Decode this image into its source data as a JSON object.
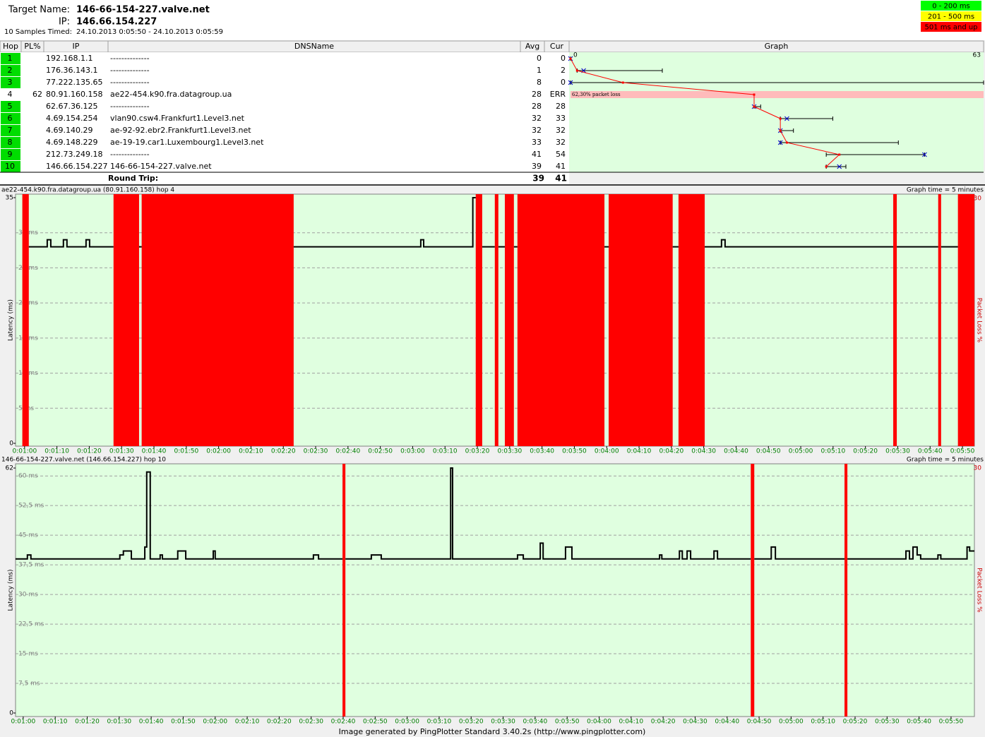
{
  "header": {
    "target_label": "Target Name:",
    "target": "146-66-154-227.valve.net",
    "ip_label": "IP:",
    "ip": "146.66.154.227",
    "samples_label": "10 Samples Timed:",
    "samples_time": "24.10.2013 0:05:50 - 24.10.2013 0:05:59"
  },
  "legend": [
    {
      "label": "0 - 200 ms",
      "color": "#00ff00"
    },
    {
      "label": "201 - 500 ms",
      "color": "#ffff00"
    },
    {
      "label": "501 ms and up",
      "color": "#ff0000"
    }
  ],
  "table": {
    "columns": [
      "Hop",
      "PL%",
      "IP",
      "DNSName",
      "Avg",
      "Cur",
      "Graph"
    ],
    "rows": [
      {
        "hop": 1,
        "pl": null,
        "ip": "192.168.1.1",
        "dns": "--------------",
        "avg": 0,
        "cur": 0
      },
      {
        "hop": 2,
        "pl": null,
        "ip": "176.36.143.1",
        "dns": "--------------",
        "avg": 1,
        "cur": 2
      },
      {
        "hop": 3,
        "pl": null,
        "ip": "77.222.135.65",
        "dns": "--------------",
        "avg": 8,
        "cur": 0
      },
      {
        "hop": 4,
        "pl": 62,
        "ip": "80.91.160.158",
        "dns": "ae22-454.k90.fra.datagroup.ua",
        "avg": 28,
        "cur": "ERR"
      },
      {
        "hop": 5,
        "pl": null,
        "ip": "62.67.36.125",
        "dns": "--------------",
        "avg": 28,
        "cur": 28
      },
      {
        "hop": 6,
        "pl": null,
        "ip": "4.69.154.254",
        "dns": "vlan90.csw4.Frankfurt1.Level3.net",
        "avg": 32,
        "cur": 33
      },
      {
        "hop": 7,
        "pl": null,
        "ip": "4.69.140.29",
        "dns": "ae-92-92.ebr2.Frankfurt1.Level3.net",
        "avg": 32,
        "cur": 32
      },
      {
        "hop": 8,
        "pl": null,
        "ip": "4.69.148.229",
        "dns": "ae-19-19.car1.Luxembourg1.Level3.net",
        "avg": 33,
        "cur": 32
      },
      {
        "hop": 9,
        "pl": null,
        "ip": "212.73.249.18",
        "dns": "--------------",
        "avg": 41,
        "cur": 54
      },
      {
        "hop": 10,
        "pl": null,
        "ip": "146.66.154.227",
        "dns": "146-66-154-227.valve.net",
        "avg": 39,
        "cur": 41
      }
    ],
    "round_trip": {
      "label": "Round Trip:",
      "avg": 39,
      "cur": 41
    }
  },
  "trace_graph": {
    "xlim": [
      0,
      63
    ],
    "xticks": [
      0,
      63
    ],
    "annotation": "62,30% packet loss",
    "line_color": "#ff0000",
    "marker_color": "#0000cc",
    "min": [
      0,
      1,
      0,
      null,
      28,
      32,
      32,
      32,
      39,
      39
    ],
    "max": [
      0,
      14,
      63,
      null,
      29,
      40,
      34,
      50,
      54,
      42
    ]
  },
  "graphs": [
    {
      "title": "ae22-454.k90.fra.datagroup.ua (80.91.160.158) hop 4",
      "graph_time": "Graph time = 5 minutes",
      "y_label": "Latency (ms)",
      "y2_label": "Packet Loss %",
      "xlim": [
        57.2,
        353.7
      ],
      "xticks": [
        {
          "value": 60,
          "label": "0:01:00"
        },
        {
          "value": 70,
          "label": "0:01:10"
        },
        {
          "value": 80,
          "label": "0:01:20"
        },
        {
          "value": 90,
          "label": "0:01:30"
        },
        {
          "value": 100,
          "label": "0:01:40"
        },
        {
          "value": 110,
          "label": "0:01:50"
        },
        {
          "value": 120,
          "label": "0:02:00"
        },
        {
          "value": 130,
          "label": "0:02:10"
        },
        {
          "value": 140,
          "label": "0:02:20"
        },
        {
          "value": 150,
          "label": "0:02:30"
        },
        {
          "value": 160,
          "label": "0:02:40"
        },
        {
          "value": 170,
          "label": "0:02:50"
        },
        {
          "value": 180,
          "label": "0:03:00"
        },
        {
          "value": 190,
          "label": "0:03:10"
        },
        {
          "value": 200,
          "label": "0:03:20"
        },
        {
          "value": 210,
          "label": "0:03:30"
        },
        {
          "value": 220,
          "label": "0:03:40"
        },
        {
          "value": 230,
          "label": "0:03:50"
        },
        {
          "value": 240,
          "label": "0:04:00"
        },
        {
          "value": 250,
          "label": "0:04:10"
        },
        {
          "value": 260,
          "label": "0:04:20"
        },
        {
          "value": 270,
          "label": "0:04:30"
        },
        {
          "value": 280,
          "label": "0:04:40"
        },
        {
          "value": 290,
          "label": "0:04:50"
        },
        {
          "value": 300,
          "label": "0:05:00"
        },
        {
          "value": 310,
          "label": "0:05:10"
        },
        {
          "value": 320,
          "label": "0:05:20"
        },
        {
          "value": 330,
          "label": "0:05:30"
        },
        {
          "value": 340,
          "label": "0:05:40"
        },
        {
          "value": 350,
          "label": "0:05:50"
        }
      ],
      "ylim": [
        0,
        35
      ],
      "yticks": [
        0,
        {
          "value": 5,
          "label": "5 ms"
        },
        {
          "value": 10,
          "label": "10 ms"
        },
        {
          "value": 15,
          "label": "15 ms"
        },
        {
          "value": 20,
          "label": "20 ms"
        },
        {
          "value": 25,
          "label": "25 ms"
        },
        {
          "value": 30,
          "label": "30 ms"
        },
        35
      ],
      "y2lim": [
        0,
        30
      ],
      "y2ticks": [
        30
      ],
      "grid": true,
      "latency": {
        "color": "#000000",
        "x": [
          61.3,
          67.0,
          67.0,
          68.1,
          68.1,
          72.0,
          72.0,
          73.1,
          73.1,
          79.0,
          79.0,
          80.1,
          80.1,
          87.5,
          null,
          95.4,
          96.2,
          null,
          143.2,
          182.5,
          182.5,
          183.4,
          183.4,
          198.6,
          198.6,
          199.5,
          null,
          201.5,
          205.4,
          null,
          206.5,
          208.5,
          null,
          211.3,
          212.4,
          null,
          239.3,
          240.6,
          null,
          260.4,
          262.2,
          null,
          270.3,
          275.5,
          275.5,
          276.6,
          276.6,
          328.6,
          null,
          329.7,
          342.5,
          null,
          343.4,
          348.6
        ],
        "values": [
          28,
          28,
          29,
          29,
          28,
          28,
          29,
          29,
          28,
          28,
          29,
          29,
          28,
          28,
          null,
          28,
          28,
          null,
          28,
          28,
          29,
          29,
          28,
          28,
          35,
          35,
          null,
          28,
          28,
          null,
          28,
          28,
          null,
          28,
          28,
          null,
          28,
          28,
          null,
          28,
          28,
          null,
          28,
          28,
          29,
          29,
          28,
          28,
          null,
          28,
          28,
          null,
          28,
          28
        ]
      },
      "loss": {
        "color": "#ff0000",
        "axis": "y2",
        "start": [
          59.3,
          87.5,
          96.2,
          199.5,
          205.4,
          208.5,
          212.4,
          240.6,
          262.2,
          328.6,
          342.5,
          348.6
        ],
        "end": [
          61.3,
          95.4,
          143.2,
          201.5,
          206.5,
          211.3,
          239.3,
          260.4,
          270.3,
          329.7,
          343.4,
          353.7
        ],
        "values": [
          30,
          30,
          30,
          30,
          30,
          30,
          30,
          30,
          30,
          30,
          30,
          30
        ]
      }
    },
    {
      "title": "146-66-154-227.valve.net (146.66.154.227) hop 10",
      "graph_time": "Graph time = 5 minutes",
      "y_label": "Latency (ms)",
      "y2_label": "Packet Loss %",
      "xlim": [
        57.6,
        357.3
      ],
      "xticks": [
        {
          "value": 60,
          "label": "0:01:00"
        },
        {
          "value": 70,
          "label": "0:01:10"
        },
        {
          "value": 80,
          "label": "0:01:20"
        },
        {
          "value": 90,
          "label": "0:01:30"
        },
        {
          "value": 100,
          "label": "0:01:40"
        },
        {
          "value": 110,
          "label": "0:01:50"
        },
        {
          "value": 120,
          "label": "0:02:00"
        },
        {
          "value": 130,
          "label": "0:02:10"
        },
        {
          "value": 140,
          "label": "0:02:20"
        },
        {
          "value": 150,
          "label": "0:02:30"
        },
        {
          "value": 160,
          "label": "0:02:40"
        },
        {
          "value": 170,
          "label": "0:02:50"
        },
        {
          "value": 180,
          "label": "0:03:00"
        },
        {
          "value": 190,
          "label": "0:03:10"
        },
        {
          "value": 200,
          "label": "0:03:20"
        },
        {
          "value": 210,
          "label": "0:03:30"
        },
        {
          "value": 220,
          "label": "0:03:40"
        },
        {
          "value": 230,
          "label": "0:03:50"
        },
        {
          "value": 240,
          "label": "0:04:00"
        },
        {
          "value": 250,
          "label": "0:04:10"
        },
        {
          "value": 260,
          "label": "0:04:20"
        },
        {
          "value": 270,
          "label": "0:04:30"
        },
        {
          "value": 280,
          "label": "0:04:40"
        },
        {
          "value": 290,
          "label": "0:04:50"
        },
        {
          "value": 300,
          "label": "0:05:00"
        },
        {
          "value": 310,
          "label": "0:05:10"
        },
        {
          "value": 320,
          "label": "0:05:20"
        },
        {
          "value": 330,
          "label": "0:05:30"
        },
        {
          "value": 340,
          "label": "0:05:40"
        },
        {
          "value": 350,
          "label": "0:05:50"
        }
      ],
      "ylim": [
        0,
        62
      ],
      "yticks": [
        0,
        {
          "value": 7.5,
          "label": "7,5 ms"
        },
        {
          "value": 15,
          "label": "15 ms"
        },
        {
          "value": 22.5,
          "label": "22,5 ms"
        },
        {
          "value": 30,
          "label": "30 ms"
        },
        {
          "value": 37.5,
          "label": "37,5 ms"
        },
        {
          "value": 45,
          "label": "45 ms"
        },
        {
          "value": 52.5,
          "label": "52,5 ms"
        },
        {
          "value": 60,
          "label": "60 ms"
        },
        62
      ],
      "y2lim": [
        0,
        30
      ],
      "y2ticks": [
        30
      ],
      "grid": true,
      "latency": {
        "color": "#000000",
        "x": [
          57.6,
          61.3,
          61.3,
          62.4,
          62.4,
          90.2,
          90.2,
          91.3,
          91.3,
          93.8,
          93.8,
          98.0,
          98.0,
          98.6,
          98.6,
          99.7,
          99.7,
          102.8,
          102.8,
          103.5,
          103.5,
          108.3,
          108.3,
          110.8,
          110.8,
          119.4,
          119.4,
          120.0,
          120.0,
          150.7,
          150.7,
          152.3,
          152.3,
          159.8,
          null,
          160.7,
          168.8,
          168.8,
          171.9,
          171.9,
          193.6,
          193.6,
          194.2,
          194.2,
          214.5,
          214.5,
          216.3,
          216.3,
          221.6,
          221.6,
          222.5,
          222.5,
          229.5,
          229.5,
          231.5,
          231.5,
          258.9,
          258.9,
          259.6,
          259.6,
          265.1,
          265.1,
          266.0,
          266.0,
          267.5,
          267.5,
          268.6,
          268.6,
          275.9,
          275.9,
          277.0,
          277.0,
          287.4,
          null,
          288.5,
          293.8,
          293.8,
          295.1,
          295.1,
          316.7,
          null,
          317.6,
          335.9,
          335.9,
          337.0,
          337.0,
          338.1,
          338.1,
          339.4,
          339.4,
          340.5,
          340.5,
          345.9,
          345.9,
          346.8,
          346.8,
          355.0,
          355.0,
          355.8,
          355.8,
          357.3
        ],
        "values": [
          39,
          39,
          40,
          40,
          39,
          39,
          40,
          40,
          41,
          41,
          39,
          39,
          42,
          42,
          61,
          61,
          39,
          39,
          40,
          40,
          39,
          39,
          41,
          41,
          39,
          39,
          41,
          41,
          39,
          39,
          40,
          40,
          39,
          39,
          null,
          39,
          39,
          40,
          40,
          39,
          39,
          62,
          62,
          39,
          39,
          40,
          40,
          39,
          39,
          43,
          43,
          39,
          39,
          42,
          42,
          39,
          39,
          40,
          40,
          39,
          39,
          41,
          41,
          39,
          39,
          41,
          41,
          39,
          39,
          41,
          41,
          39,
          39,
          null,
          39,
          39,
          42,
          42,
          39,
          39,
          null,
          39,
          39,
          41,
          41,
          39,
          39,
          42,
          42,
          40,
          40,
          39,
          39,
          40,
          40,
          39,
          39,
          42,
          42,
          41,
          41
        ]
      },
      "loss": {
        "color": "#ff0000",
        "axis": "y2",
        "start": [
          159.8,
          287.4,
          316.7
        ],
        "end": [
          160.7,
          288.5,
          317.6
        ],
        "values": [
          30,
          30,
          30
        ]
      }
    }
  ],
  "footer": "Image generated by PingPlotter Standard 3.40.2s (http://www.pingplotter.com)"
}
